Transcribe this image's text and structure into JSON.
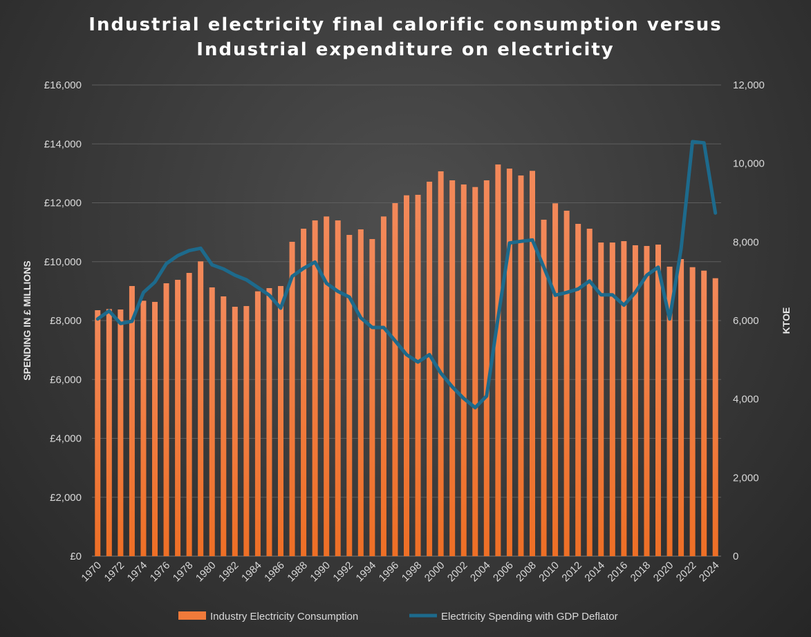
{
  "chart_data": {
    "type": "bar+line",
    "title_lines": [
      "Industrial electricity final calorific consumption versus",
      "Industrial expenditure on electricity"
    ],
    "x": [
      1970,
      1971,
      1972,
      1973,
      1974,
      1975,
      1976,
      1977,
      1978,
      1979,
      1980,
      1981,
      1982,
      1983,
      1984,
      1985,
      1986,
      1987,
      1988,
      1989,
      1990,
      1991,
      1992,
      1993,
      1994,
      1995,
      1996,
      1997,
      1998,
      1999,
      2000,
      2001,
      2002,
      2003,
      2004,
      2005,
      2006,
      2007,
      2008,
      2009,
      2010,
      2011,
      2012,
      2013,
      2014,
      2015,
      2016,
      2017,
      2018,
      2019,
      2020,
      2021,
      2022,
      2023,
      2024
    ],
    "x_tick_labels": [
      "1970",
      "1972",
      "1974",
      "1976",
      "1978",
      "1980",
      "1982",
      "1984",
      "1986",
      "1988",
      "1990",
      "1992",
      "1994",
      "1996",
      "1998",
      "2000",
      "2002",
      "2004",
      "2006",
      "2008",
      "2010",
      "2012",
      "2014",
      "2016",
      "2018",
      "2020",
      "2022",
      "2024"
    ],
    "series": [
      {
        "name": "Industry Electricity Consumption",
        "type": "bar",
        "axis": "right",
        "color": "#f07a3a",
        "values": [
          6264,
          6294,
          6282,
          6880,
          6505,
          6476,
          6950,
          7038,
          7214,
          7508,
          6845,
          6616,
          6352,
          6370,
          6745,
          6827,
          6880,
          8006,
          8340,
          8551,
          8651,
          8551,
          8182,
          8323,
          8076,
          8651,
          8991,
          9190,
          9203,
          9537,
          9801,
          9572,
          9466,
          9401,
          9572,
          9975,
          9871,
          9695,
          9813,
          8569,
          8986,
          8798,
          8463,
          8340,
          7988,
          7988,
          8023,
          7918,
          7900,
          7935,
          7373,
          7566,
          7360,
          7272,
          7079
        ]
      },
      {
        "name": "Electricity Spending with GDP Deflator",
        "type": "line",
        "axis": "left",
        "color": "#1d6a8c",
        "values": [
          8055,
          8328,
          7898,
          7977,
          8954,
          9306,
          9931,
          10205,
          10377,
          10456,
          9893,
          9752,
          9541,
          9384,
          9126,
          8861,
          8423,
          9501,
          9776,
          9987,
          9267,
          8993,
          8798,
          8094,
          7765,
          7765,
          7312,
          6843,
          6592,
          6843,
          6217,
          5748,
          5356,
          5044,
          5435,
          8100,
          10635,
          10690,
          10737,
          9814,
          8861,
          8955,
          9072,
          9345,
          8876,
          8876,
          8524,
          8955,
          9541,
          9814,
          8055,
          10440,
          14076,
          14036,
          11653
        ]
      }
    ],
    "ylabel_left": "SPENDING IN £ MILLIONS",
    "ylabel_right": "KTOE",
    "ylim_left": [
      0,
      16000
    ],
    "ylim_right": [
      0,
      12000
    ],
    "left_ticks": [
      "£0",
      "£2,000",
      "£4,000",
      "£6,000",
      "£8,000",
      "£10,000",
      "£12,000",
      "£14,000",
      "£16,000"
    ],
    "right_ticks": [
      "0",
      "2,000",
      "4,000",
      "6,000",
      "8,000",
      "10,000",
      "12,000"
    ],
    "grid": true,
    "legend_position": "bottom"
  }
}
